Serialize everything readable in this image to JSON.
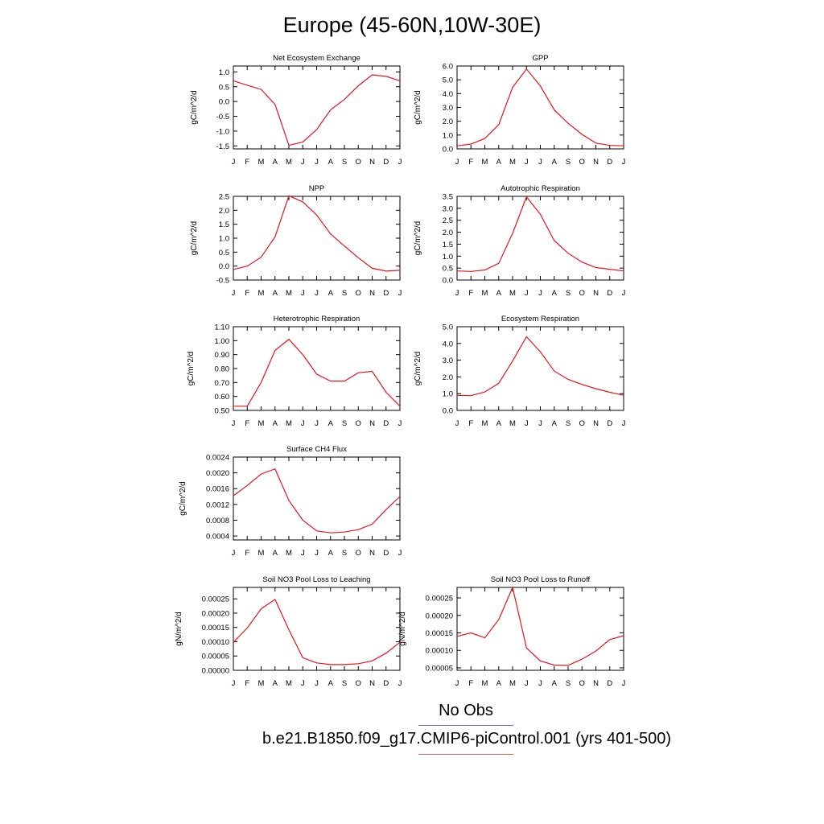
{
  "title": "Europe (45-60N,10W-30E)",
  "legend": {
    "obs_label": "No Obs",
    "model_label": "b.e21.B1850.f09_g17.CMIP6-piControl.001 (yrs 401-500)",
    "obs_color": "#6a6af0",
    "model_color": "#f06a6a"
  },
  "chart_data": [
    {
      "type": "line",
      "title": "Net Ecosystem Exchange",
      "ylabel": "gC/m^2/d",
      "x": [
        "J",
        "F",
        "M",
        "A",
        "M",
        "J",
        "J",
        "A",
        "S",
        "O",
        "N",
        "D",
        "J"
      ],
      "ylim": [
        -1.6,
        1.2
      ],
      "yticks": [
        "1.0",
        "0.5",
        "0.0",
        "-0.5",
        "-1.0",
        "-1.5"
      ],
      "series": [
        {
          "values": [
            0.7,
            0.55,
            0.41,
            -0.1,
            -1.48,
            -1.37,
            -0.95,
            -0.28,
            0.07,
            0.53,
            0.9,
            0.85,
            0.7
          ]
        }
      ]
    },
    {
      "type": "line",
      "title": "GPP",
      "ylabel": "gC/m^2/d",
      "x": [
        "J",
        "F",
        "M",
        "A",
        "M",
        "J",
        "J",
        "A",
        "S",
        "O",
        "N",
        "D",
        "J"
      ],
      "ylim": [
        0.0,
        6.0
      ],
      "yticks": [
        "6.0",
        "5.0",
        "4.0",
        "3.0",
        "2.0",
        "1.0",
        "0.0"
      ],
      "series": [
        {
          "values": [
            0.22,
            0.35,
            0.75,
            1.75,
            4.45,
            5.78,
            4.55,
            2.82,
            1.85,
            1.05,
            0.42,
            0.25,
            0.22
          ]
        }
      ]
    },
    {
      "type": "line",
      "title": "NPP",
      "ylabel": "gC/m^2/d",
      "x": [
        "J",
        "F",
        "M",
        "A",
        "M",
        "J",
        "J",
        "A",
        "S",
        "O",
        "N",
        "D",
        "J"
      ],
      "ylim": [
        -0.5,
        2.5
      ],
      "yticks": [
        "2.5",
        "2.0",
        "1.5",
        "1.0",
        "0.5",
        "0.0",
        "-0.5"
      ],
      "series": [
        {
          "values": [
            -0.12,
            0.0,
            0.32,
            1.05,
            2.52,
            2.3,
            1.83,
            1.15,
            0.72,
            0.3,
            -0.08,
            -0.18,
            -0.15
          ]
        }
      ]
    },
    {
      "type": "line",
      "title": "Autotrophic Respiration",
      "ylabel": "gC/m^2/d",
      "x": [
        "J",
        "F",
        "M",
        "A",
        "M",
        "J",
        "J",
        "A",
        "S",
        "O",
        "N",
        "D",
        "J"
      ],
      "ylim": [
        0.0,
        3.5
      ],
      "yticks": [
        "3.5",
        "3.0",
        "2.5",
        "2.0",
        "1.5",
        "1.0",
        "0.5",
        "0.0"
      ],
      "series": [
        {
          "values": [
            0.38,
            0.36,
            0.42,
            0.7,
            1.95,
            3.48,
            2.75,
            1.65,
            1.12,
            0.75,
            0.52,
            0.45,
            0.38
          ]
        }
      ]
    },
    {
      "type": "line",
      "title": "Heterotrophic Respiration",
      "ylabel": "gC/m^2/d",
      "x": [
        "J",
        "F",
        "M",
        "A",
        "M",
        "J",
        "J",
        "A",
        "S",
        "O",
        "N",
        "D",
        "J"
      ],
      "ylim": [
        0.5,
        1.1
      ],
      "yticks": [
        "1.10",
        "1.00",
        "0.90",
        "0.80",
        "0.70",
        "0.60",
        "0.50"
      ],
      "series": [
        {
          "values": [
            0.53,
            0.53,
            0.7,
            0.93,
            1.01,
            0.9,
            0.76,
            0.71,
            0.71,
            0.77,
            0.78,
            0.63,
            0.53
          ]
        }
      ]
    },
    {
      "type": "line",
      "title": "Ecosystem Respiration",
      "ylabel": "gC/m^2/d",
      "x": [
        "J",
        "F",
        "M",
        "A",
        "M",
        "J",
        "J",
        "A",
        "S",
        "O",
        "N",
        "D",
        "J"
      ],
      "ylim": [
        0.0,
        5.0
      ],
      "yticks": [
        "5.0",
        "4.0",
        "3.0",
        "2.0",
        "1.0",
        "0.0"
      ],
      "series": [
        {
          "values": [
            0.9,
            0.88,
            1.1,
            1.62,
            2.95,
            4.4,
            3.5,
            2.35,
            1.85,
            1.55,
            1.3,
            1.08,
            0.9
          ]
        }
      ]
    },
    {
      "type": "line",
      "title": "Surface CH4 Flux",
      "ylabel": "gC/m^2/d",
      "x": [
        "J",
        "F",
        "M",
        "A",
        "M",
        "J",
        "J",
        "A",
        "S",
        "O",
        "N",
        "D",
        "J"
      ],
      "ylim": [
        0.0003,
        0.0024
      ],
      "yticks": [
        "0.0024",
        "0.0020",
        "0.0016",
        "0.0012",
        "0.0008",
        "0.0004"
      ],
      "series": [
        {
          "values": [
            0.00142,
            0.00168,
            0.00197,
            0.0021,
            0.0013,
            0.0008,
            0.00053,
            0.00048,
            0.0005,
            0.00056,
            0.0007,
            0.00107,
            0.0014
          ]
        }
      ]
    },
    {
      "type": "line",
      "title": "Soil NO3 Pool Loss to Leaching",
      "ylabel": "gN/m^2/d",
      "x": [
        "J",
        "F",
        "M",
        "A",
        "M",
        "J",
        "J",
        "A",
        "S",
        "O",
        "N",
        "D",
        "J"
      ],
      "ylim": [
        0.0,
        0.00029
      ],
      "yticks": [
        "0.00025",
        "0.00020",
        "0.00015",
        "0.00010",
        "0.00005",
        "0.00000"
      ],
      "series": [
        {
          "values": [
            9.8e-05,
            0.000148,
            0.000215,
            0.000248,
            0.000142,
            4.4e-05,
            2.6e-05,
            2e-05,
            2e-05,
            2.3e-05,
            3.3e-05,
            6e-05,
            9.8e-05
          ]
        }
      ]
    },
    {
      "type": "line",
      "title": "Soil NO3 Pool Loss to Runoff",
      "ylabel": "gN/m^2/d",
      "x": [
        "J",
        "F",
        "M",
        "A",
        "M",
        "J",
        "J",
        "A",
        "S",
        "O",
        "N",
        "D",
        "J"
      ],
      "ylim": [
        4.3e-05,
        0.00028
      ],
      "yticks": [
        "0.00025",
        "0.00020",
        "0.00015",
        "0.00010",
        "0.00005"
      ],
      "series": [
        {
          "values": [
            0.00014,
            0.00015,
            0.000136,
            0.000188,
            0.00028,
            0.000107,
            7e-05,
            5.8e-05,
            5.7e-05,
            7.5e-05,
            9.8e-05,
            0.000131,
            0.000142
          ]
        }
      ]
    }
  ]
}
